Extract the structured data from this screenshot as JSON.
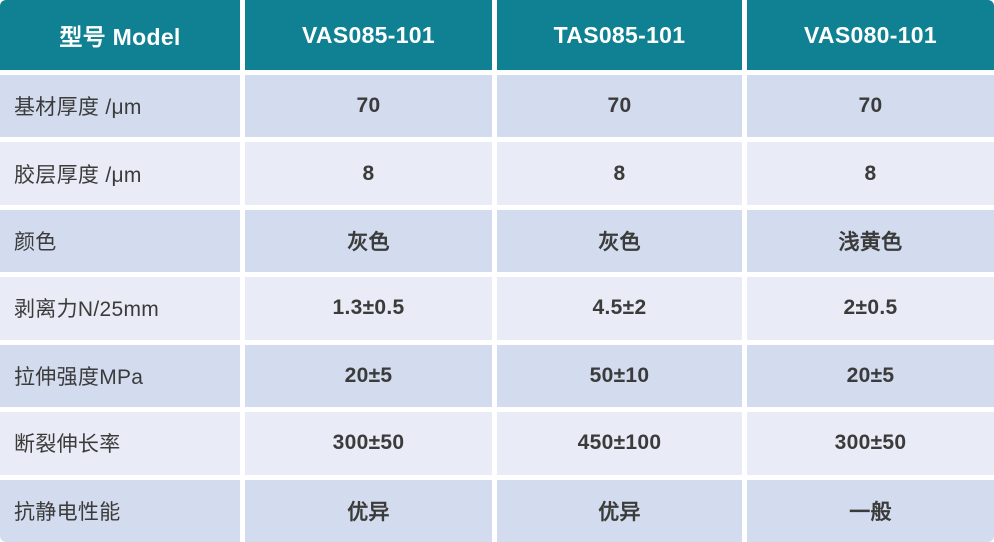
{
  "table": {
    "header": {
      "model_label": "型号 Model",
      "columns": [
        "VAS085-101",
        "TAS085-101",
        "VAS080-101"
      ]
    },
    "rows": [
      {
        "label": "基材厚度 /μm",
        "values": [
          "70",
          "70",
          "70"
        ]
      },
      {
        "label": "胶层厚度 /μm",
        "values": [
          "8",
          "8",
          "8"
        ]
      },
      {
        "label": "颜色",
        "values": [
          "灰色",
          "灰色",
          "浅黄色"
        ]
      },
      {
        "label": "剥离力N/25mm",
        "values": [
          "1.3±0.5",
          "4.5±2",
          "2±0.5"
        ]
      },
      {
        "label": "拉伸强度MPa",
        "values": [
          "20±5",
          "50±10",
          "20±5"
        ]
      },
      {
        "label": "断裂伸长率",
        "values": [
          "300±50",
          "450±100",
          "300±50"
        ]
      },
      {
        "label": "抗静电性能",
        "values": [
          "优异",
          "优异",
          "一般"
        ]
      }
    ],
    "colors": {
      "header_bg": "#0f8192",
      "header_text": "#ffffff",
      "row_odd_bg": "#d3dcee",
      "row_even_bg": "#e9ecf6",
      "body_text": "#3b3b3b",
      "separator": "#ffffff"
    }
  }
}
